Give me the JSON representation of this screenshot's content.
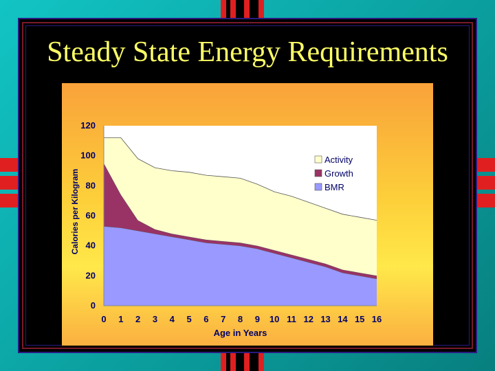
{
  "slide": {
    "title": "Steady State Energy Requirements"
  },
  "colors": {
    "background": "#0aa7a7",
    "title": "#ffff66",
    "activity": "#ffffcc",
    "growth": "#993366",
    "bmr": "#9999ff",
    "chart_bg_top": "#f9a23a",
    "chart_bg_mid": "#ffe84a"
  },
  "chart_data": {
    "type": "area",
    "stacked": true,
    "xlabel": "Age in Years",
    "ylabel": "Calories  per Kilogram",
    "x": [
      0,
      1,
      2,
      3,
      4,
      5,
      6,
      7,
      8,
      9,
      10,
      11,
      12,
      13,
      14,
      15,
      16
    ],
    "xticks": [
      "0",
      "1",
      "2",
      "3",
      "4",
      "5",
      "6",
      "7",
      "8",
      "9",
      "10",
      "11",
      "12",
      "13",
      "14",
      "15",
      "16"
    ],
    "yticks": [
      "0",
      "20",
      "40",
      "60",
      "80",
      "100",
      "120"
    ],
    "ylim": [
      0,
      120
    ],
    "grid": false,
    "legend_position": "right",
    "series": [
      {
        "name": "BMR",
        "color": "#9999ff",
        "values": [
          53,
          52,
          50,
          48,
          46,
          44,
          42,
          41,
          40,
          38,
          35,
          32,
          29,
          26,
          22,
          20,
          18
        ]
      },
      {
        "name": "Growth",
        "color": "#993366",
        "values": [
          42,
          22,
          7,
          3,
          2,
          2,
          2,
          2,
          2,
          2,
          2,
          2,
          2,
          2,
          2,
          2,
          2
        ]
      },
      {
        "name": "Activity",
        "color": "#ffffcc",
        "values": [
          17,
          38,
          41,
          41,
          42,
          43,
          43,
          43,
          43,
          41,
          39,
          39,
          38,
          37,
          37,
          37,
          37
        ]
      }
    ],
    "totals": [
      112,
      112,
      98,
      92,
      90,
      89,
      87,
      86,
      85,
      81,
      76,
      73,
      69,
      65,
      61,
      59,
      57
    ],
    "legend_order": [
      "Activity",
      "Growth",
      "BMR"
    ]
  }
}
